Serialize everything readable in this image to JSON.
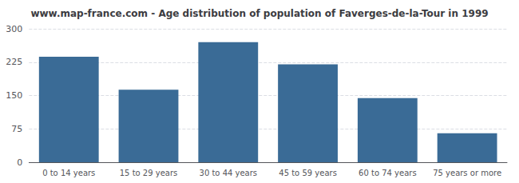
{
  "chart_data": {
    "type": "bar",
    "title": "www.map-france.com - Age distribution of population of Faverges-de-la-Tour in 1999",
    "categories": [
      "0 to 14 years",
      "15 to 29 years",
      "30 to 44 years",
      "45 to 59 years",
      "60 to 74 years",
      "75 years or more"
    ],
    "values": [
      237,
      163,
      270,
      220,
      144,
      65
    ],
    "color": "#3a6b96",
    "ylim": [
      0,
      300
    ],
    "yticks": [
      0,
      75,
      150,
      225,
      300
    ],
    "grid": true
  }
}
